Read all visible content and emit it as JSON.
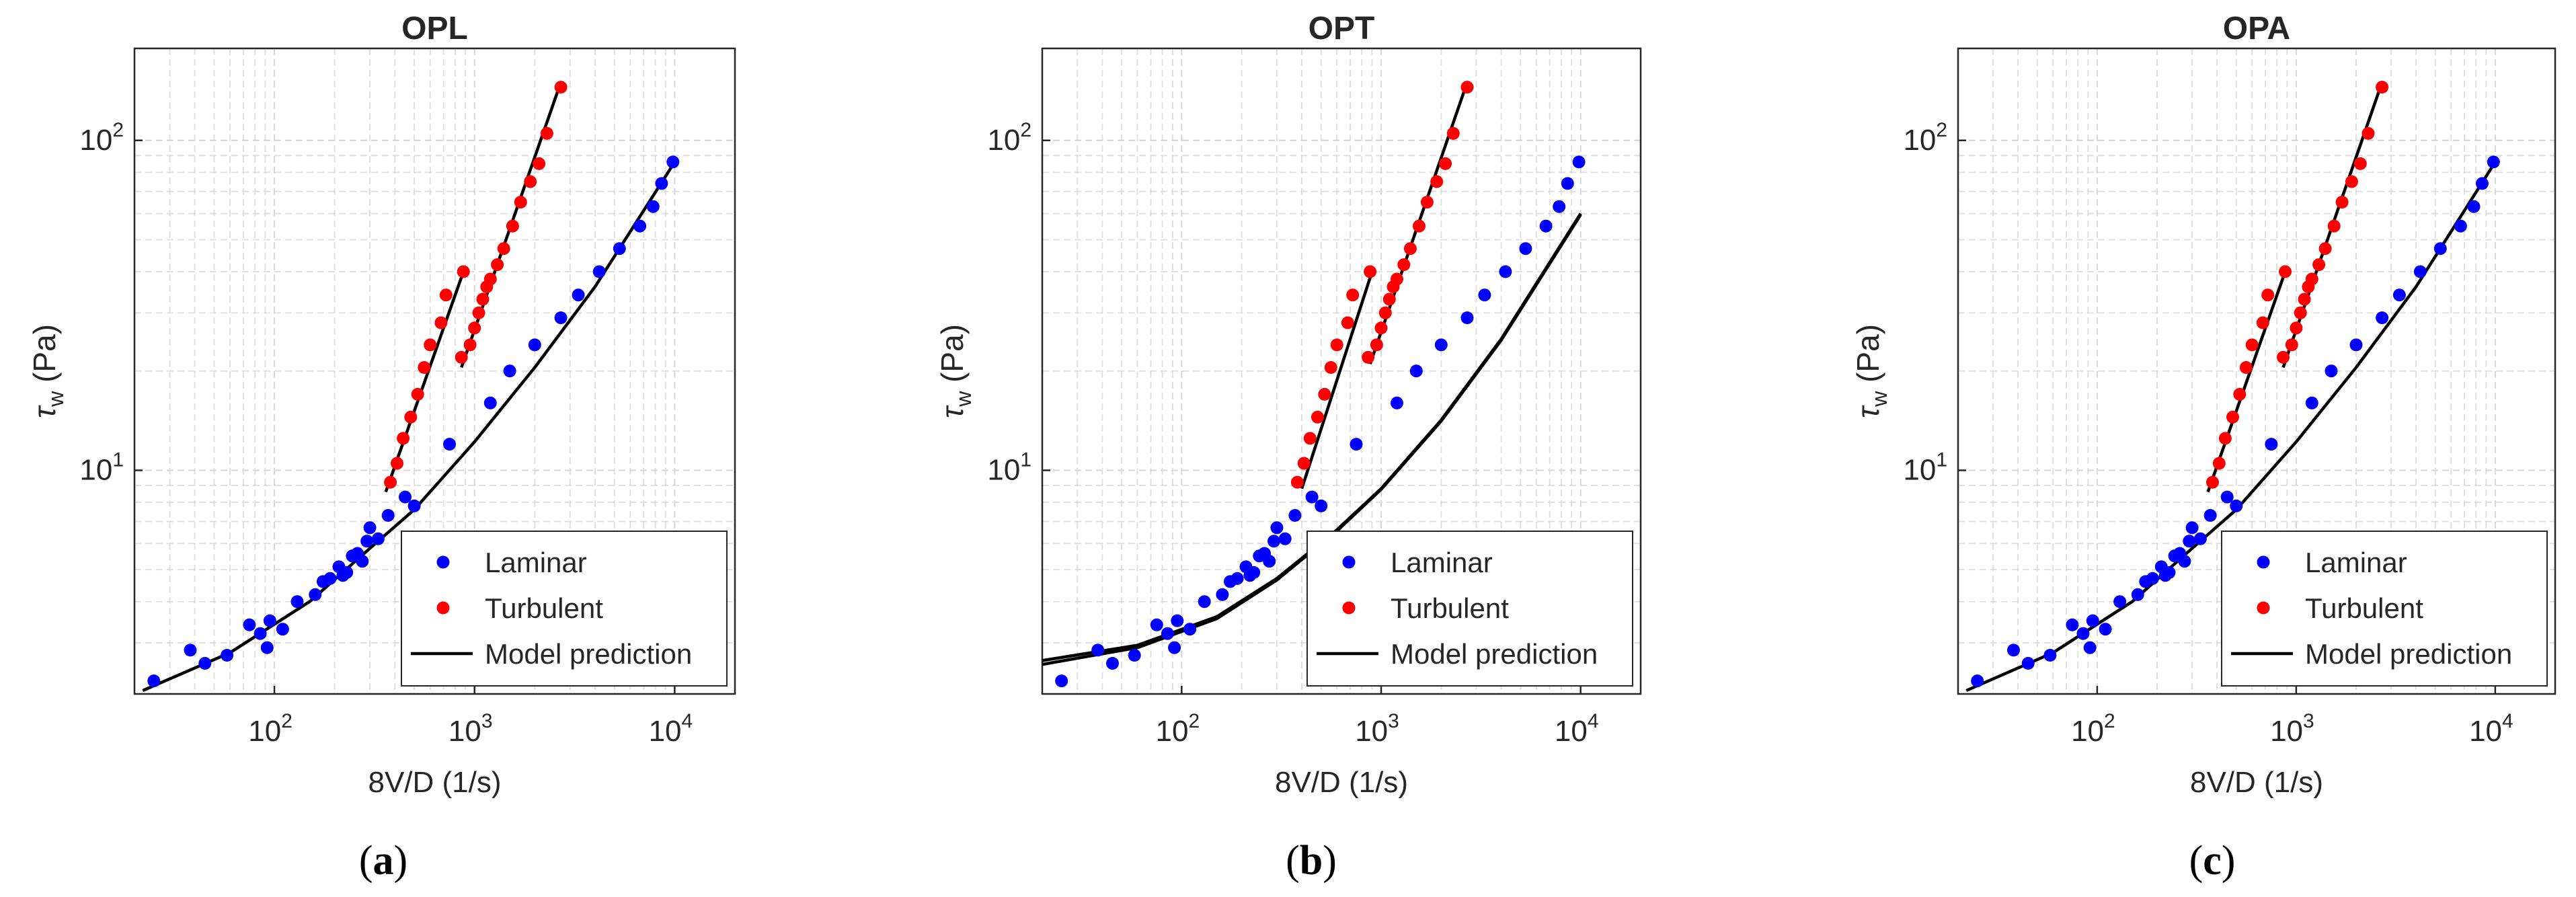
{
  "chart_data": [
    {
      "type": "scatter",
      "panel": "a",
      "panel_label_prefix": "(",
      "panel_label_letter": "a",
      "panel_label_suffix": ")",
      "title": "OPL",
      "xlabel": "8V/D (1/s)",
      "ylabel_symbol": "τ",
      "ylabel_subscript": "w",
      "ylabel_unit": " (Pa)",
      "xscale": "log",
      "yscale": "log",
      "xlim": [
        20,
        20000
      ],
      "ylim": [
        2.1,
        190
      ],
      "xticks": [
        {
          "value": 100,
          "base": "10",
          "exp": "2"
        },
        {
          "value": 1000,
          "base": "10",
          "exp": "3"
        },
        {
          "value": 10000,
          "base": "10",
          "exp": "4"
        }
      ],
      "yticks": [
        {
          "value": 10,
          "base": "10",
          "exp": "1"
        },
        {
          "value": 100,
          "base": "10",
          "exp": "2"
        }
      ],
      "grid": true,
      "minor_grid": true,
      "legend_position": "bottom-right",
      "legend": [
        "Laminar",
        "Turbulent",
        "Model prediction"
      ],
      "series": [
        {
          "name": "Laminar",
          "color": "#0000ff",
          "x": [
            25,
            38,
            45,
            58,
            75,
            85,
            92,
            95,
            110,
            130,
            160,
            175,
            190,
            210,
            220,
            230,
            245,
            260,
            275,
            290,
            300,
            330,
            370,
            450,
            500,
            750,
            1200,
            1500,
            2000,
            2700,
            3300,
            4200,
            5300,
            6700,
            7800,
            8600,
            9800
          ],
          "y": [
            2.3,
            2.85,
            2.6,
            2.75,
            3.4,
            3.2,
            2.9,
            3.5,
            3.3,
            4.0,
            4.2,
            4.6,
            4.7,
            5.1,
            4.8,
            4.9,
            5.5,
            5.6,
            5.3,
            6.1,
            6.7,
            6.2,
            7.3,
            8.3,
            7.8,
            12,
            16,
            20,
            24,
            29,
            34,
            40,
            47,
            55,
            63,
            74,
            86
          ]
        },
        {
          "name": "Turbulent",
          "color": "#ff0000",
          "x": [
            380,
            410,
            440,
            480,
            520,
            560,
            600,
            680,
            720,
            860,
            880,
            950,
            1000,
            1050,
            1100,
            1150,
            1200,
            1300,
            1400,
            1550,
            1700,
            1900,
            2100,
            2300,
            2700
          ],
          "y": [
            9.2,
            10.5,
            12.5,
            14.5,
            17,
            20.5,
            24,
            28,
            34,
            22,
            40,
            24,
            27,
            30,
            33,
            36,
            38,
            42,
            47,
            55,
            65,
            75,
            85,
            105,
            145
          ]
        }
      ],
      "model_lines": [
        {
          "name": "Model prediction",
          "x": [
            22,
            60,
            150,
            300,
            500,
            1000,
            2000,
            4000,
            10000
          ],
          "y": [
            2.15,
            2.8,
            4.0,
            5.8,
            7.6,
            12.2,
            20.5,
            36,
            86
          ]
        },
        {
          "name": "Turbulent fit 1",
          "x": [
            360,
            880
          ],
          "y": [
            8.6,
            40
          ]
        },
        {
          "name": "Turbulent fit 2",
          "x": [
            860,
            2700
          ],
          "y": [
            20.5,
            150
          ]
        }
      ]
    },
    {
      "type": "scatter",
      "panel": "b",
      "panel_label_prefix": "(",
      "panel_label_letter": "b",
      "panel_label_suffix": ")",
      "title": "OPT",
      "xlabel": "8V/D (1/s)",
      "ylabel_symbol": "τ",
      "ylabel_subscript": "w",
      "ylabel_unit": " (Pa)",
      "xscale": "log",
      "yscale": "log",
      "xlim": [
        20,
        20000
      ],
      "ylim": [
        2.1,
        190
      ],
      "xticks": [
        {
          "value": 100,
          "base": "10",
          "exp": "2"
        },
        {
          "value": 1000,
          "base": "10",
          "exp": "3"
        },
        {
          "value": 10000,
          "base": "10",
          "exp": "4"
        }
      ],
      "yticks": [
        {
          "value": 10,
          "base": "10",
          "exp": "1"
        },
        {
          "value": 100,
          "base": "10",
          "exp": "2"
        }
      ],
      "grid": true,
      "minor_grid": true,
      "legend_position": "bottom-right",
      "legend": [
        "Laminar",
        "Turbulent",
        "Model prediction"
      ],
      "series": [
        {
          "name": "Laminar",
          "color": "#0000ff",
          "x": [
            25,
            38,
            45,
            58,
            75,
            85,
            92,
            95,
            110,
            130,
            160,
            175,
            190,
            210,
            220,
            230,
            245,
            260,
            275,
            290,
            300,
            330,
            370,
            450,
            500,
            750,
            1200,
            1500,
            2000,
            2700,
            3300,
            4200,
            5300,
            6700,
            7800,
            8600,
            9800
          ],
          "y": [
            2.3,
            2.85,
            2.6,
            2.75,
            3.4,
            3.2,
            2.9,
            3.5,
            3.3,
            4.0,
            4.2,
            4.6,
            4.7,
            5.1,
            4.8,
            4.9,
            5.5,
            5.6,
            5.3,
            6.1,
            6.7,
            6.2,
            7.3,
            8.3,
            7.8,
            12,
            16,
            20,
            24,
            29,
            34,
            40,
            47,
            55,
            63,
            74,
            86
          ]
        },
        {
          "name": "Turbulent",
          "color": "#ff0000",
          "x": [
            380,
            410,
            440,
            480,
            520,
            560,
            600,
            680,
            720,
            860,
            880,
            950,
            1000,
            1050,
            1100,
            1150,
            1200,
            1300,
            1400,
            1550,
            1700,
            1900,
            2100,
            2300,
            2700
          ],
          "y": [
            9.2,
            10.5,
            12.5,
            14.5,
            17,
            20.5,
            24,
            28,
            34,
            22,
            40,
            24,
            27,
            30,
            33,
            36,
            38,
            42,
            47,
            55,
            65,
            75,
            85,
            105,
            145
          ]
        }
      ],
      "model_lines": [
        {
          "name": "Model prediction",
          "x": [
            20,
            60,
            150,
            300,
            600,
            1000,
            2000,
            4000,
            10000
          ],
          "y": [
            2.65,
            2.95,
            3.6,
            4.7,
            6.6,
            8.8,
            14.2,
            25,
            60
          ]
        },
        {
          "name": "Model prediction 2",
          "x": [
            20,
            60,
            150,
            300,
            600,
            1000,
            2000,
            4000,
            10000
          ],
          "y": [
            2.58,
            2.9,
            3.55,
            4.65,
            6.55,
            8.75,
            14.1,
            24.8,
            59.5
          ]
        },
        {
          "name": "Turbulent fit 1",
          "x": [
            400,
            900
          ],
          "y": [
            8.8,
            40
          ]
        },
        {
          "name": "Turbulent fit 2",
          "x": [
            880,
            2700
          ],
          "y": [
            21,
            150
          ]
        }
      ]
    },
    {
      "type": "scatter",
      "panel": "c",
      "panel_label_prefix": "(",
      "panel_label_letter": "c",
      "panel_label_suffix": ")",
      "title": "OPA",
      "xlabel": "8V/D (1/s)",
      "ylabel_symbol": "τ",
      "ylabel_subscript": "w",
      "ylabel_unit": " (Pa)",
      "xscale": "log",
      "yscale": "log",
      "xlim": [
        20,
        20000
      ],
      "ylim": [
        2.1,
        190
      ],
      "xticks": [
        {
          "value": 100,
          "base": "10",
          "exp": "2"
        },
        {
          "value": 1000,
          "base": "10",
          "exp": "3"
        },
        {
          "value": 10000,
          "base": "10",
          "exp": "4"
        }
      ],
      "yticks": [
        {
          "value": 10,
          "base": "10",
          "exp": "1"
        },
        {
          "value": 100,
          "base": "10",
          "exp": "2"
        }
      ],
      "grid": true,
      "minor_grid": true,
      "legend_position": "bottom-right",
      "legend": [
        "Laminar",
        "Turbulent",
        "Model prediction"
      ],
      "series": [
        {
          "name": "Laminar",
          "color": "#0000ff",
          "x": [
            25,
            38,
            45,
            58,
            75,
            85,
            92,
            95,
            110,
            130,
            160,
            175,
            190,
            210,
            220,
            230,
            245,
            260,
            275,
            290,
            300,
            330,
            370,
            450,
            500,
            750,
            1200,
            1500,
            2000,
            2700,
            3300,
            4200,
            5300,
            6700,
            7800,
            8600,
            9800
          ],
          "y": [
            2.3,
            2.85,
            2.6,
            2.75,
            3.4,
            3.2,
            2.9,
            3.5,
            3.3,
            4.0,
            4.2,
            4.6,
            4.7,
            5.1,
            4.8,
            4.9,
            5.5,
            5.6,
            5.3,
            6.1,
            6.7,
            6.2,
            7.3,
            8.3,
            7.8,
            12,
            16,
            20,
            24,
            29,
            34,
            40,
            47,
            55,
            63,
            74,
            86
          ]
        },
        {
          "name": "Turbulent",
          "color": "#ff0000",
          "x": [
            380,
            410,
            440,
            480,
            520,
            560,
            600,
            680,
            720,
            860,
            880,
            950,
            1000,
            1050,
            1100,
            1150,
            1200,
            1300,
            1400,
            1550,
            1700,
            1900,
            2100,
            2300,
            2700
          ],
          "y": [
            9.2,
            10.5,
            12.5,
            14.5,
            17,
            20.5,
            24,
            28,
            34,
            22,
            40,
            24,
            27,
            30,
            33,
            36,
            38,
            42,
            47,
            55,
            65,
            75,
            85,
            105,
            145
          ]
        }
      ],
      "model_lines": [
        {
          "name": "Model prediction",
          "x": [
            22,
            60,
            150,
            300,
            500,
            1000,
            2000,
            4000,
            10000
          ],
          "y": [
            2.15,
            2.8,
            4.0,
            5.8,
            7.6,
            12.2,
            20.5,
            36,
            86
          ]
        },
        {
          "name": "Turbulent fit 1",
          "x": [
            360,
            880
          ],
          "y": [
            8.6,
            40
          ]
        },
        {
          "name": "Turbulent fit 2",
          "x": [
            860,
            2700
          ],
          "y": [
            20.5,
            150
          ]
        }
      ]
    }
  ]
}
